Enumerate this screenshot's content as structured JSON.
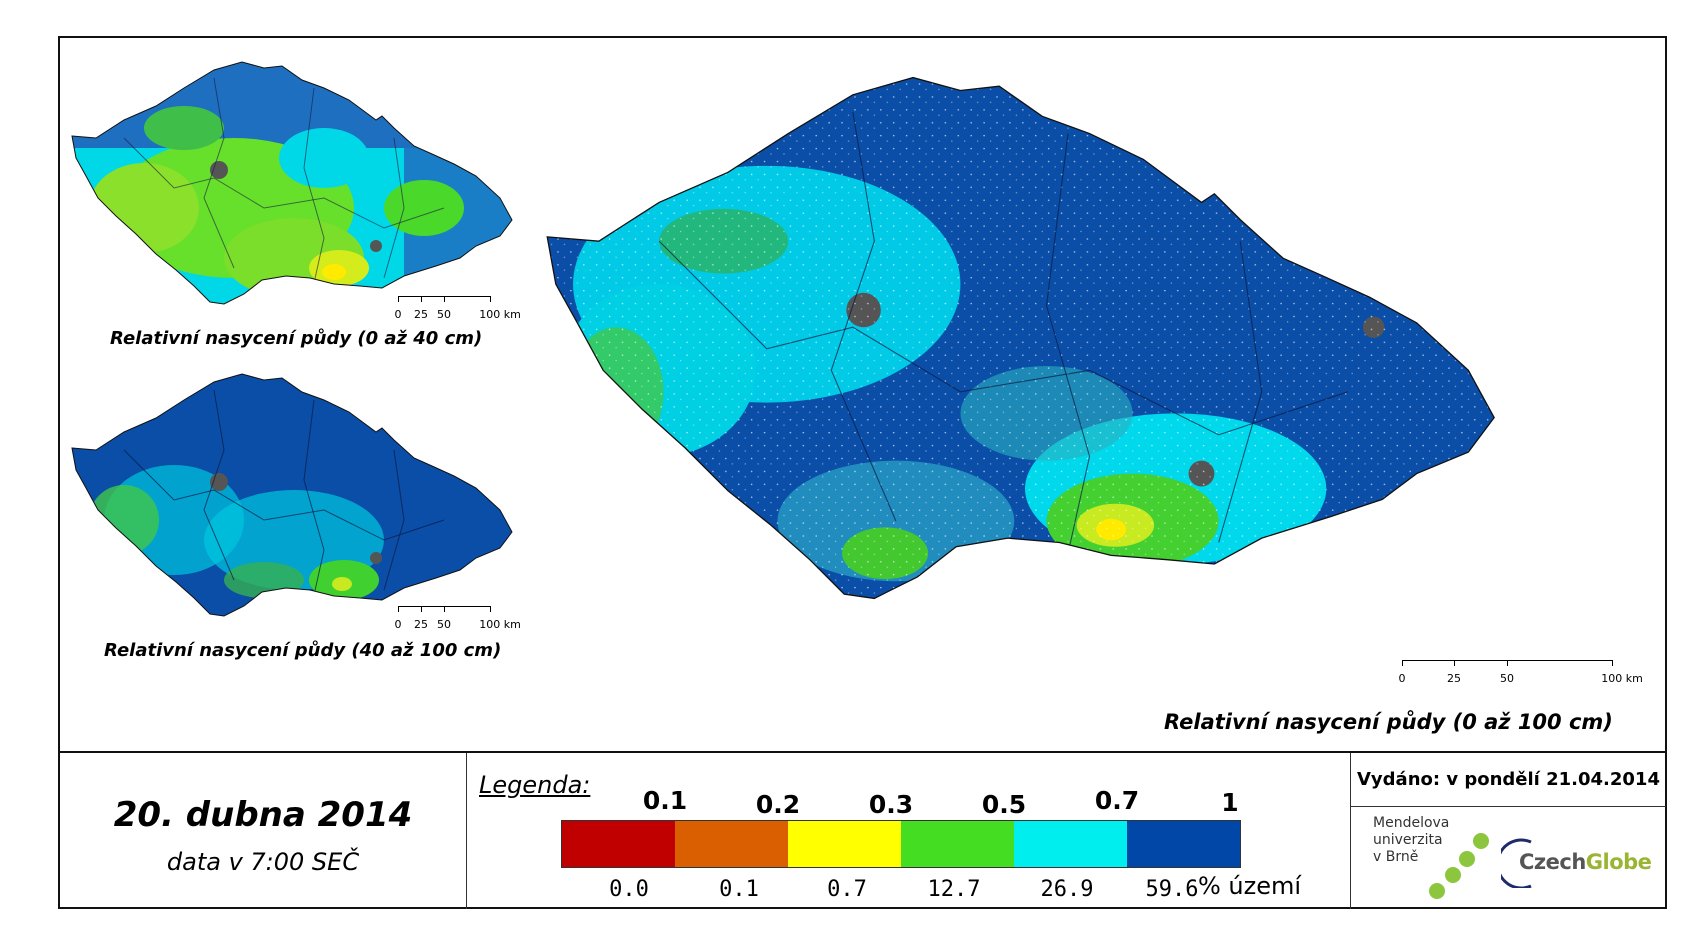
{
  "maps": {
    "small_top": {
      "caption": "Relativní nasycení půdy (0 až 40 cm)"
    },
    "small_bottom": {
      "caption": "Relativní nasycení půdy (40 až 100 cm)"
    },
    "large": {
      "caption": "Relativní nasycení půdy (0 až 100 cm)"
    },
    "scale_labels": [
      "0",
      "25",
      "50",
      "100 km"
    ]
  },
  "date": {
    "main": "20. dubna 2014",
    "sub": "data v 7:00 SEČ"
  },
  "legend": {
    "title": "Legenda:",
    "breaks": [
      "0.1",
      "0.2",
      "0.3",
      "0.5",
      "0.7",
      "1"
    ],
    "colors": [
      "#c00000",
      "#d95f00",
      "#ffff00",
      "#44dd22",
      "#00eeee",
      "#0047a8"
    ],
    "percentages": [
      "0.0",
      "0.1",
      "0.7",
      "12.7",
      "26.9",
      "59.6"
    ],
    "unit": "% území"
  },
  "info": {
    "issued": "Vydáno: v pondělí 21.04.2014",
    "mendel_lines": [
      "Mendelova",
      "univerzita",
      "v Brně"
    ],
    "czechglobe_a": "Czech",
    "czechglobe_b": "Globe"
  },
  "palette": {
    "dark_blue": "#0047a8",
    "cyan": "#00eeee",
    "green": "#44dd22",
    "yellow": "#ffff00",
    "city_grey": "#555555",
    "mendel_green": "#8cc63f",
    "czechglobe_blue": "#1d2a6b"
  }
}
